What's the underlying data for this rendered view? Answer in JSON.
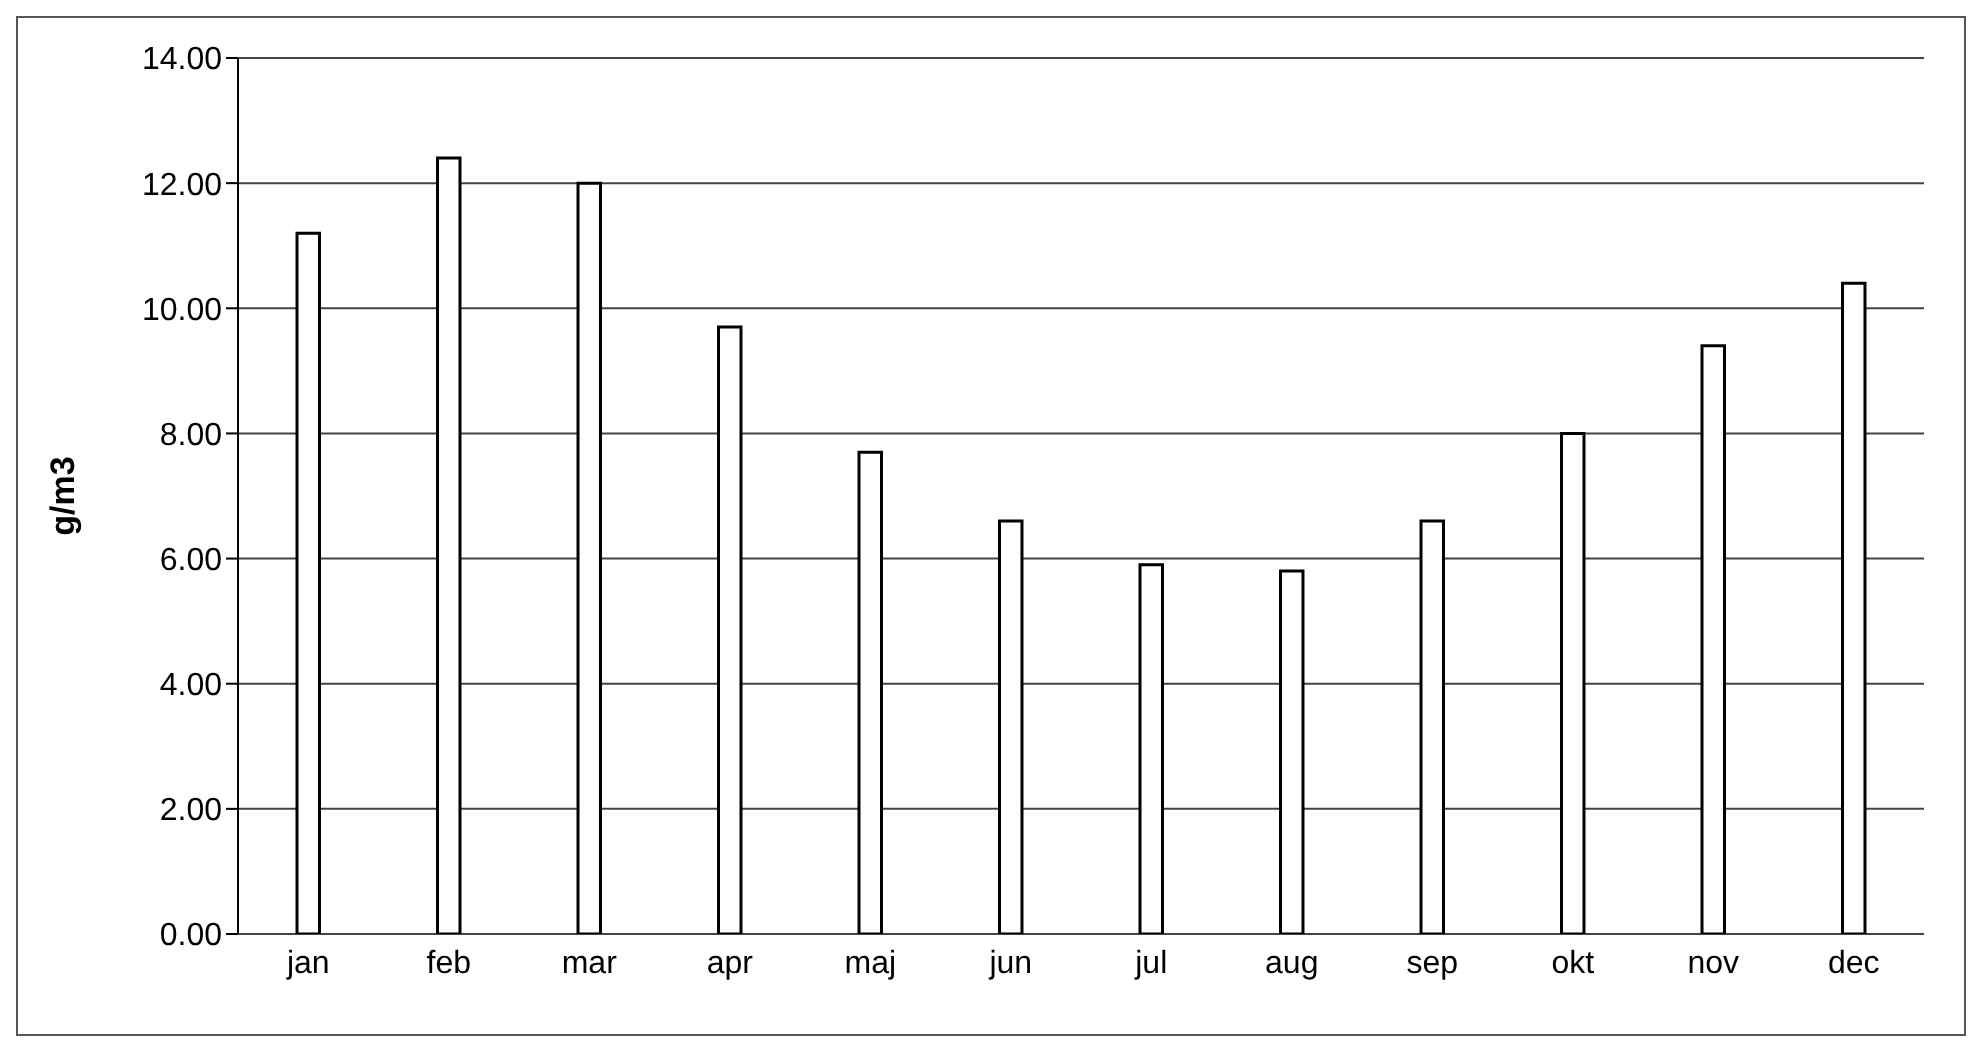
{
  "chart_data": {
    "type": "bar",
    "ylabel": "g/m3",
    "categories": [
      "jan",
      "feb",
      "mar",
      "apr",
      "maj",
      "jun",
      "jul",
      "aug",
      "sep",
      "okt",
      "nov",
      "dec"
    ],
    "values": [
      11.2,
      12.4,
      12.0,
      9.7,
      7.7,
      6.6,
      5.9,
      5.8,
      6.6,
      8.0,
      9.4,
      10.4
    ],
    "color": "#ffffff",
    "ylim": [
      0,
      14
    ],
    "yticks": [
      {
        "value": 0,
        "label": "0.00"
      },
      {
        "value": 2,
        "label": "2.00"
      },
      {
        "value": 4,
        "label": "4.00"
      },
      {
        "value": 6,
        "label": "6.00"
      },
      {
        "value": 8,
        "label": "8.00"
      },
      {
        "value": 10,
        "label": "10.00"
      },
      {
        "value": 12,
        "label": "12.00"
      },
      {
        "value": 14,
        "label": "14.00"
      }
    ],
    "grid": "y",
    "legend": false
  }
}
